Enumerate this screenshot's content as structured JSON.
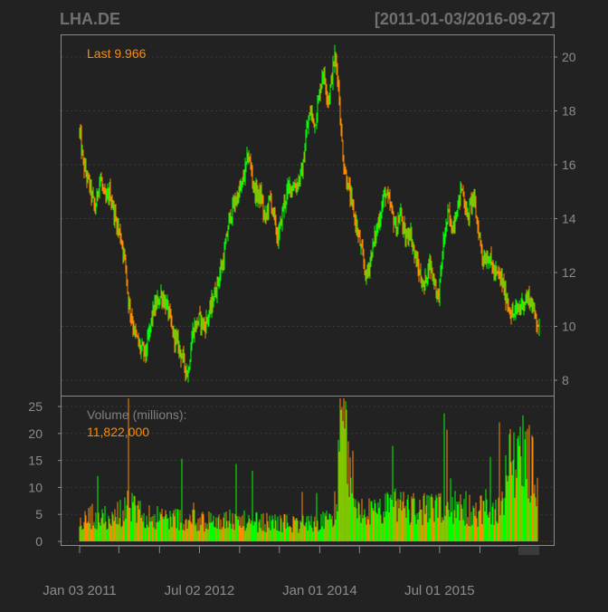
{
  "chart_data": {
    "type": "line",
    "title": "LHA.DE",
    "date_range": "[2011-01-03/2016-09-27]",
    "last_label": "Last 9.966",
    "volume_title": "Volume (millions):",
    "volume_value": "11,822,000",
    "x_labels": [
      "Jan 03 2011",
      "Jul 02 2012",
      "Jan 01 2014",
      "Jul 01 2015"
    ],
    "x_label_dates": [
      "2011-01-03",
      "2012-07-02",
      "2014-01-01",
      "2015-07-01"
    ],
    "price_axis": {
      "ticks": [
        "8",
        "10",
        "12",
        "14",
        "16",
        "18",
        "20"
      ],
      "ylim": [
        7.5,
        21.2
      ]
    },
    "volume_axis": {
      "ticks": [
        "0",
        "5",
        "10",
        "15",
        "20",
        "25"
      ],
      "ylim": [
        0,
        27
      ]
    },
    "grid": true,
    "series": [
      {
        "name": "",
        "kind": "price",
        "x": [
          "2011-01-03",
          "2011-01-20",
          "2011-02-15",
          "2011-03-15",
          "2011-04-05",
          "2011-05-01",
          "2011-05-20",
          "2011-06-15",
          "2011-07-10",
          "2011-08-01",
          "2011-08-12",
          "2011-09-10",
          "2011-10-05",
          "2011-11-01",
          "2011-12-01",
          "2012-01-10",
          "2012-02-10",
          "2012-03-01",
          "2012-04-01",
          "2012-05-10",
          "2012-06-01",
          "2012-07-01",
          "2012-07-25",
          "2012-08-20",
          "2012-09-15",
          "2012-10-20",
          "2012-11-15",
          "2012-12-10",
          "2013-01-10",
          "2013-02-10",
          "2013-03-10",
          "2013-04-10",
          "2013-04-25",
          "2013-05-20",
          "2013-06-25",
          "2013-07-20",
          "2013-08-15",
          "2013-09-15",
          "2013-10-15",
          "2013-11-01",
          "2013-11-20",
          "2013-12-10",
          "2014-01-15",
          "2014-02-10",
          "2014-03-10",
          "2014-03-25",
          "2014-04-05",
          "2014-04-20",
          "2014-05-15",
          "2014-06-10",
          "2014-07-05",
          "2014-08-01",
          "2014-09-01",
          "2014-10-05",
          "2014-10-25",
          "2014-11-20",
          "2014-12-15",
          "2015-01-05",
          "2015-01-25",
          "2015-02-15",
          "2015-03-10",
          "2015-03-30",
          "2015-04-20",
          "2015-05-15",
          "2015-06-10",
          "2015-06-25",
          "2015-07-20",
          "2015-08-10",
          "2015-08-25",
          "2015-09-20",
          "2015-10-10",
          "2015-11-05",
          "2015-11-30",
          "2015-12-20",
          "2016-01-15",
          "2016-02-10",
          "2016-03-05",
          "2016-04-05",
          "2016-05-01",
          "2016-05-25",
          "2016-06-20",
          "2016-07-15",
          "2016-08-10",
          "2016-09-01",
          "2016-09-27"
        ],
        "values": [
          17.2,
          16.0,
          15.3,
          14.3,
          15.6,
          14.6,
          15.0,
          14.0,
          13.3,
          12.3,
          11.0,
          9.8,
          9.2,
          9.0,
          10.5,
          11.2,
          10.6,
          9.8,
          9.2,
          8.2,
          9.8,
          10.3,
          10.0,
          10.6,
          11.4,
          12.5,
          14.0,
          14.6,
          15.2,
          16.4,
          15.0,
          14.8,
          13.9,
          14.8,
          13.2,
          14.5,
          15.2,
          15.2,
          15.8,
          17.2,
          18.0,
          17.5,
          19.5,
          18.4,
          20.0,
          19.3,
          17.6,
          16.0,
          15.0,
          14.0,
          13.0,
          11.8,
          13.0,
          14.2,
          15.0,
          14.4,
          13.6,
          14.2,
          13.2,
          13.6,
          12.6,
          12.0,
          11.4,
          12.4,
          11.6,
          11.0,
          13.2,
          14.2,
          13.6,
          14.4,
          15.2,
          14.0,
          14.9,
          13.8,
          12.5,
          12.6,
          12.0,
          11.8,
          11.0,
          10.4,
          10.6,
          10.9,
          11.1,
          10.6,
          9.97
        ]
      },
      {
        "name": "",
        "kind": "volume",
        "x": [
          "2011-01-03",
          "2011-03-01",
          "2011-06-01",
          "2011-08-10",
          "2011-10-15",
          "2012-01-15",
          "2012-04-15",
          "2012-07-15",
          "2012-10-15",
          "2013-01-15",
          "2013-04-15",
          "2013-07-15",
          "2013-10-15",
          "2014-01-15",
          "2014-03-15",
          "2014-04-10",
          "2014-06-01",
          "2014-09-15",
          "2014-12-15",
          "2015-03-15",
          "2015-06-15",
          "2015-09-15",
          "2015-12-15",
          "2016-03-15",
          "2016-06-24",
          "2016-09-27"
        ],
        "values": [
          3.6,
          5.0,
          4.4,
          6.8,
          5.2,
          4.6,
          4.4,
          3.8,
          4.2,
          4.0,
          3.7,
          3.6,
          3.4,
          3.9,
          4.2,
          25.8,
          6.0,
          5.6,
          7.0,
          6.4,
          6.2,
          6.6,
          6.0,
          5.8,
          19.6,
          11.8
        ]
      }
    ]
  }
}
